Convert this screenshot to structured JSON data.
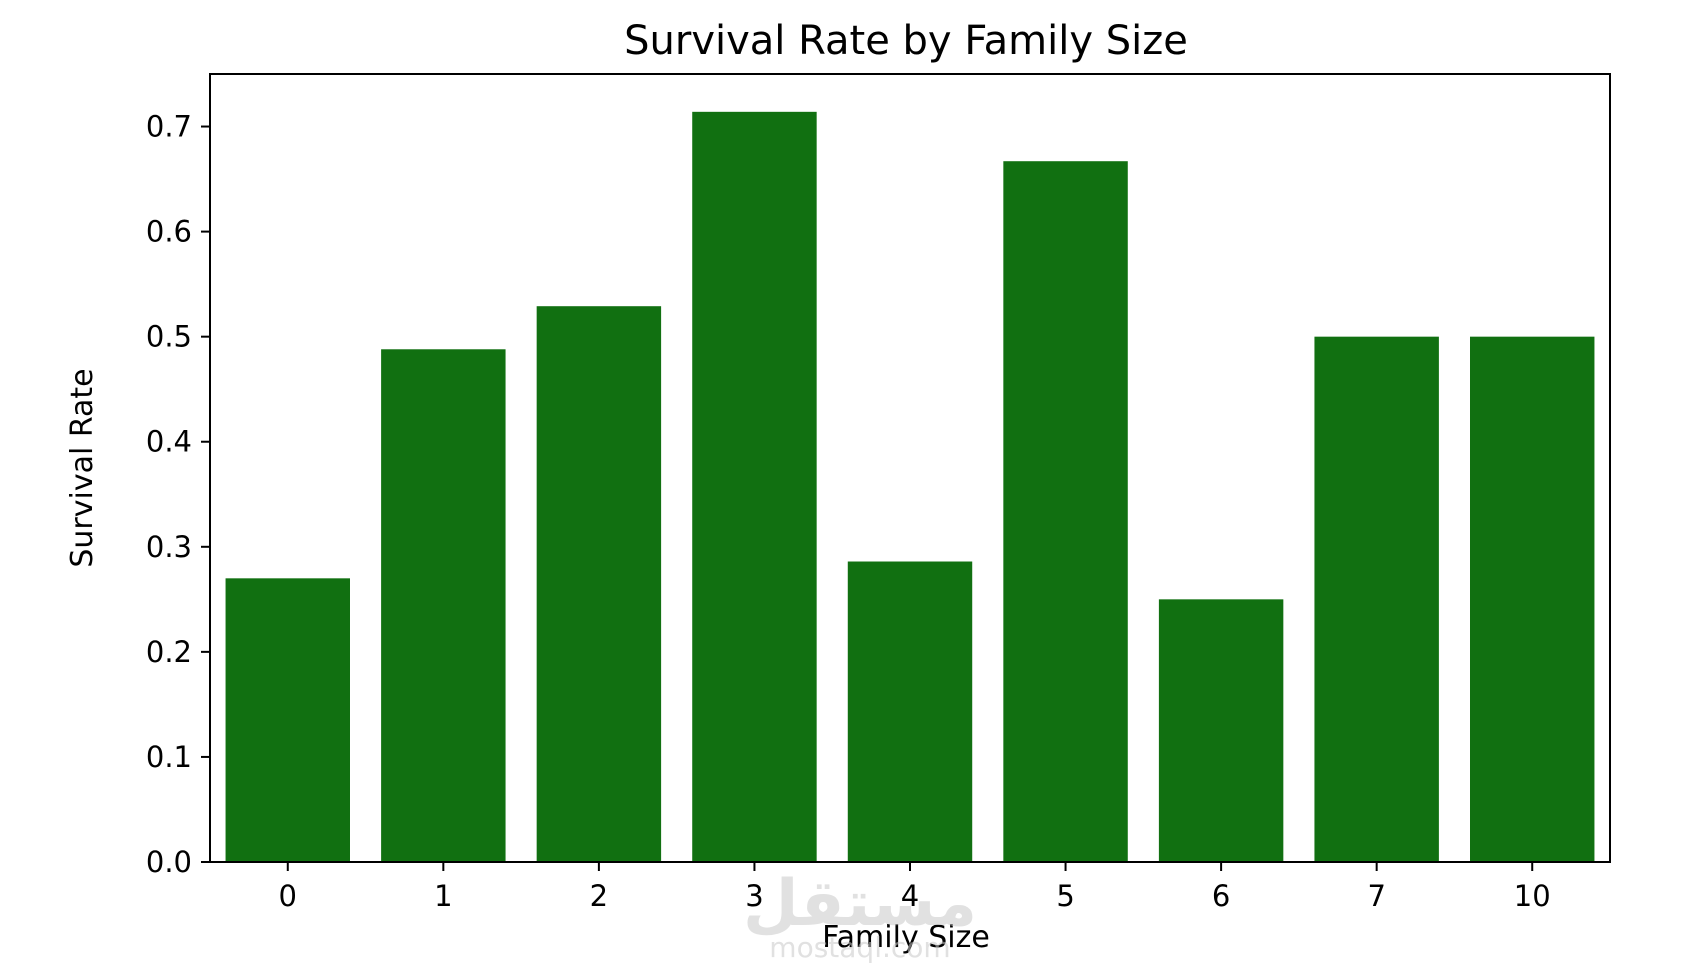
{
  "chart_data": {
    "type": "bar",
    "title": "Survival Rate by Family Size",
    "xlabel": "Family Size",
    "ylabel": "Survival Rate",
    "categories": [
      "0",
      "1",
      "2",
      "3",
      "4",
      "5",
      "6",
      "7",
      "10"
    ],
    "values": [
      0.27,
      0.488,
      0.529,
      0.714,
      0.286,
      0.667,
      0.25,
      0.5,
      0.5
    ],
    "ylim": [
      0,
      0.75
    ],
    "yticks": [
      "0.0",
      "0.1",
      "0.2",
      "0.3",
      "0.4",
      "0.5",
      "0.6",
      "0.7"
    ],
    "grid": false,
    "legend": "none",
    "bar_color": "#117011"
  },
  "watermark": {
    "arabic": "مستقل",
    "latin": "mostaql.com"
  }
}
